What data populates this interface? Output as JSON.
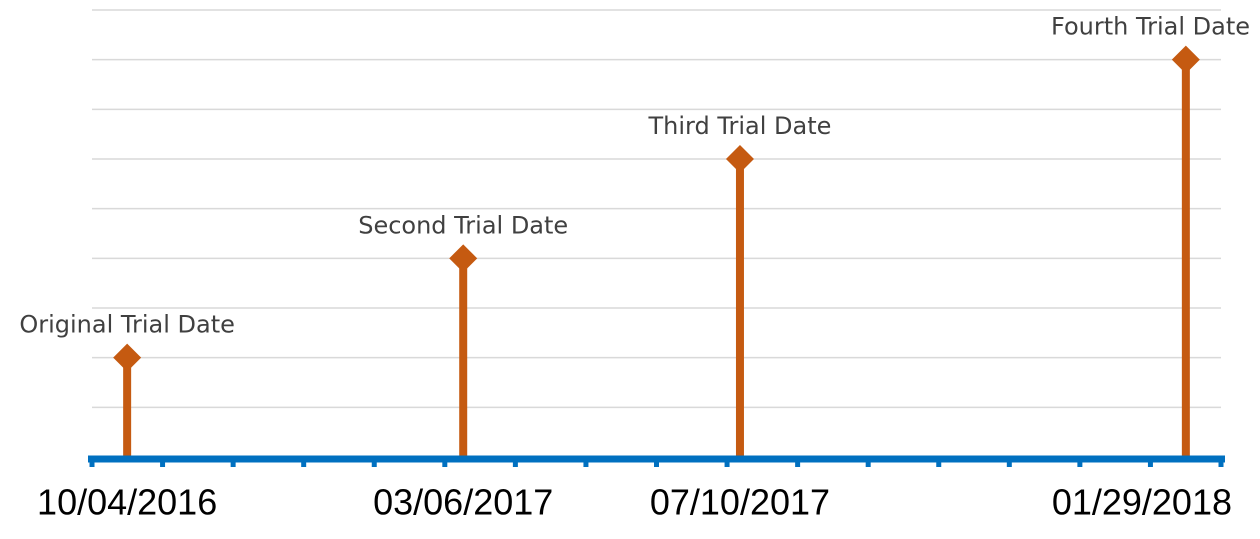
{
  "chart_data": {
    "type": "timeline",
    "x": [
      "10/04/2016",
      "03/06/2017",
      "07/10/2017",
      "01/29/2018"
    ],
    "labels": [
      "Original Trial Date",
      "Second Trial Date",
      "Third Trial Date",
      "Fourth Trial Date"
    ],
    "values": [
      2,
      4,
      6,
      8
    ],
    "xlim": [
      "09/18/2016",
      "02/14/2018"
    ],
    "ylim": [
      0,
      9
    ],
    "yticks": [
      0,
      1,
      2,
      3,
      4,
      5,
      6,
      7,
      8,
      9
    ],
    "grid": true,
    "color": "#c55a11",
    "axis_color": "#0070c0"
  }
}
